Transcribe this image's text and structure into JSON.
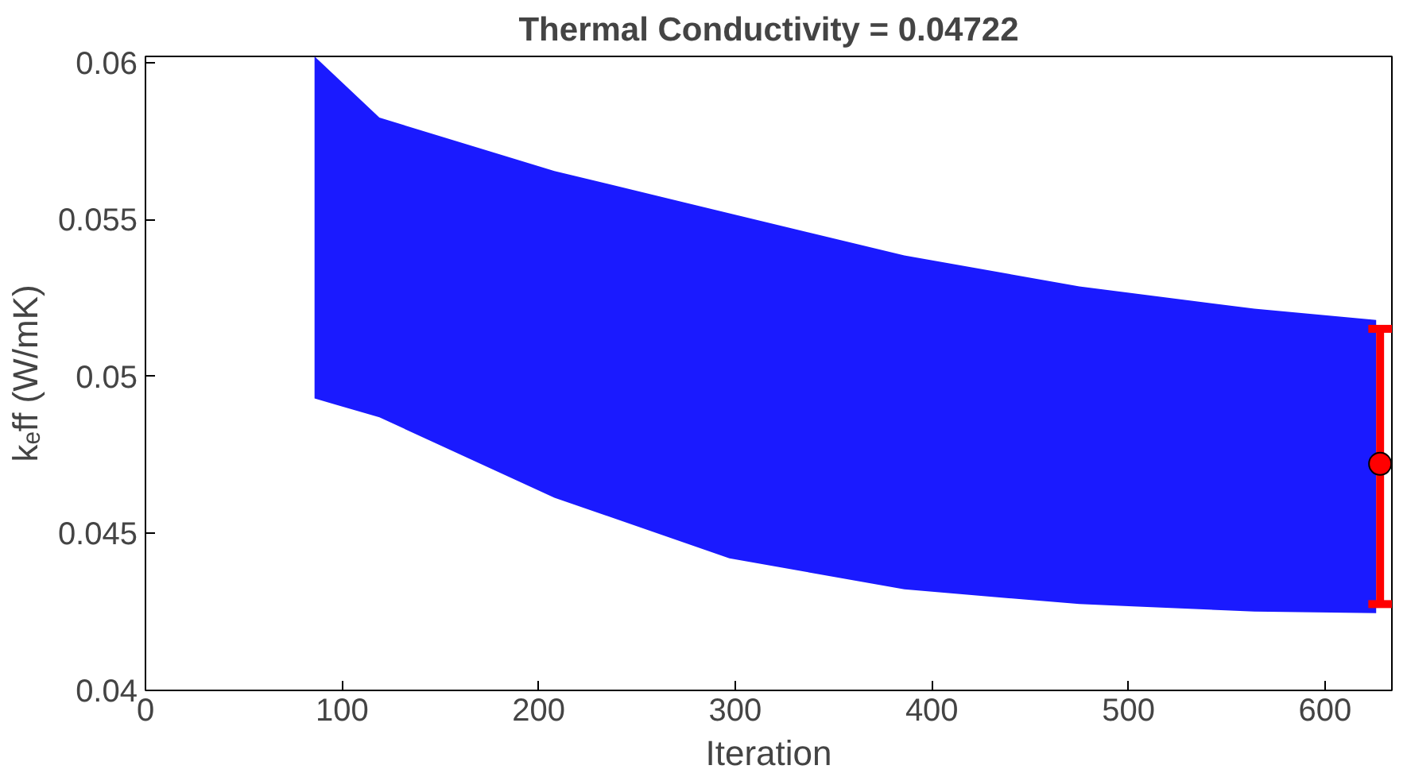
{
  "chart_data": {
    "type": "area",
    "title": "Thermal Conductivity = 0.04722",
    "xlabel": "Iteration",
    "ylabel": "kₑff (W/mK)",
    "xlim": [
      0,
      634
    ],
    "ylim": [
      0.04,
      0.0602
    ],
    "xticks": [
      0,
      100,
      200,
      300,
      400,
      500,
      600
    ],
    "yticks": [
      0.04,
      0.045,
      0.05,
      0.055,
      0.06
    ],
    "grid": false,
    "series": [
      {
        "color": "#1a1aff",
        "x": [
          86,
          119,
          208,
          297,
          386,
          475,
          564,
          626
        ],
        "values": [
          null,
          null,
          null,
          null,
          null,
          null,
          null,
          null
        ],
        "upper": [
          0.0602,
          0.05825,
          0.05655,
          0.0552,
          0.05386,
          0.05287,
          0.05216,
          0.0518
        ],
        "lower": [
          0.0493,
          0.0487,
          0.04614,
          0.04421,
          0.04322,
          0.04275,
          0.04251,
          0.04246
        ]
      },
      {
        "type": "scatter",
        "color": "#ff0000",
        "marker": "circle",
        "x": [
          628
        ],
        "values": [
          0.04722
        ],
        "errors": [
          [
            0.04275,
            0.05152
          ]
        ]
      }
    ]
  }
}
